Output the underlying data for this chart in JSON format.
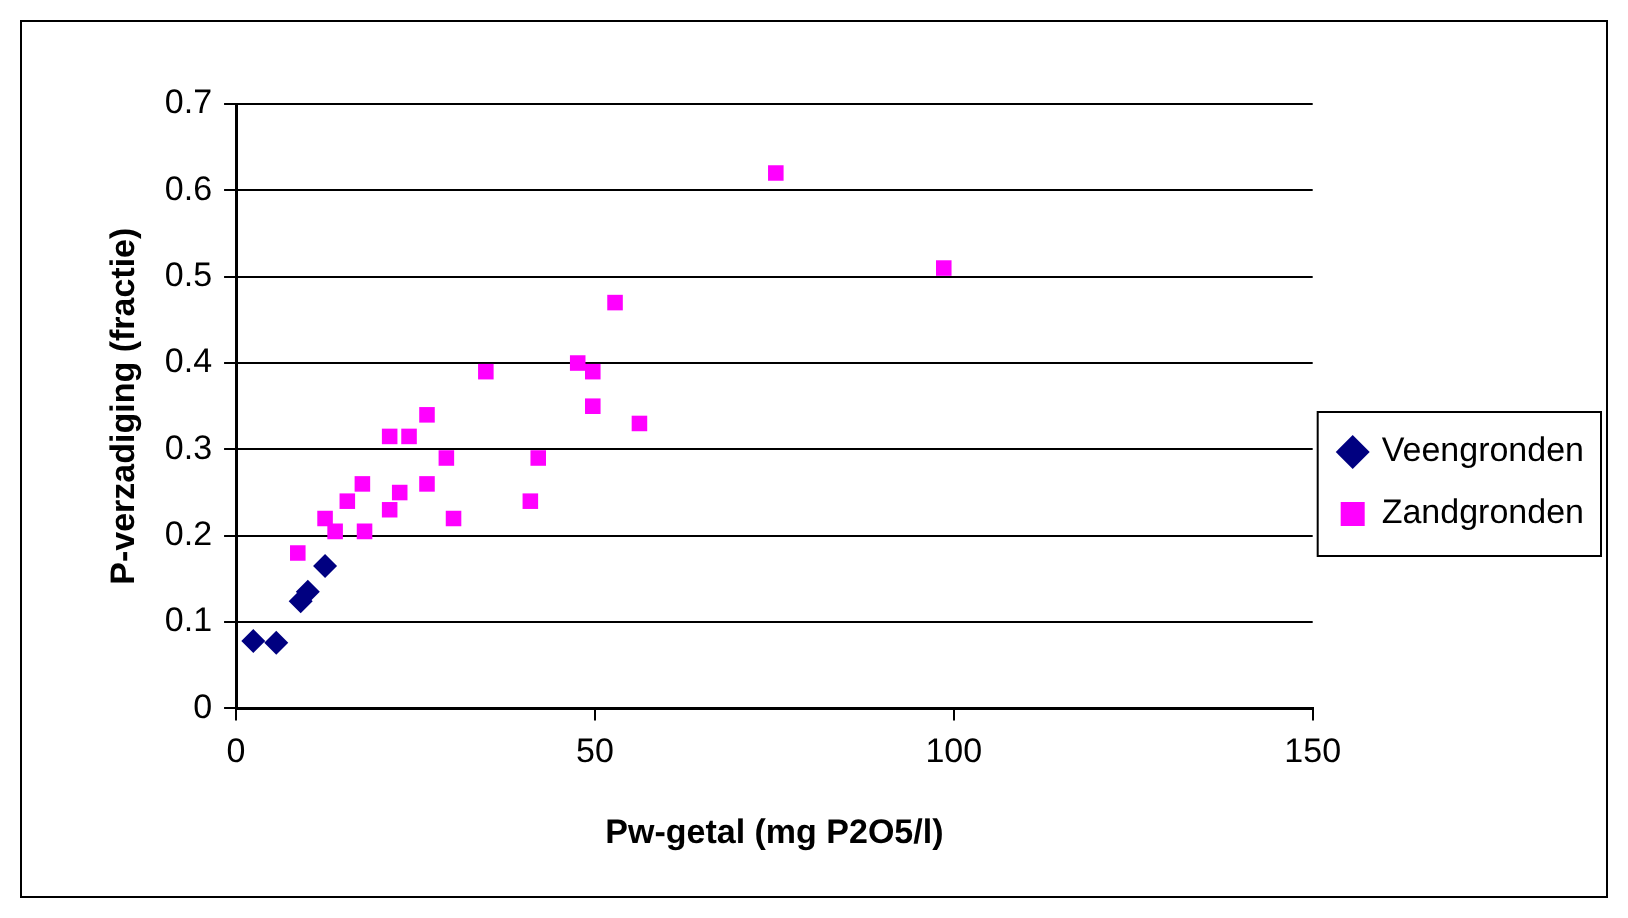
{
  "chart_data": {
    "type": "scatter",
    "xlabel": "Pw-getal (mg P2O5/l)",
    "ylabel": "P-verzadiging (fractie)",
    "xlim": [
      0,
      150
    ],
    "xticks": [
      0,
      50,
      100,
      150
    ],
    "ylim": [
      0,
      0.7
    ],
    "yticks": [
      0,
      0.1,
      0.2,
      0.3,
      0.4,
      0.5,
      0.6,
      0.7
    ],
    "grid": "y",
    "legend": "right",
    "series": [
      {
        "name": "Veengronden",
        "color": "#000080",
        "marker": "diamond",
        "x": [
          2.4,
          5.6,
          9.0,
          10.0,
          12.4
        ],
        "values": [
          0.078,
          0.076,
          0.124,
          0.135,
          0.165
        ]
      },
      {
        "name": "Zandgronden",
        "color": "#ff00ff",
        "marker": "square",
        "x": [
          8.6,
          12.4,
          13.8,
          15.5,
          17.6,
          17.9,
          21.4,
          22.8,
          21.4,
          24.1,
          26.6,
          26.6,
          29.3,
          30.3,
          34.8,
          41.0,
          42.1,
          47.6,
          49.7,
          49.7,
          56.2,
          75.2,
          98.6,
          52.8
        ],
        "values": [
          0.18,
          0.22,
          0.205,
          0.24,
          0.26,
          0.205,
          0.23,
          0.25,
          0.315,
          0.315,
          0.34,
          0.26,
          0.29,
          0.22,
          0.39,
          0.24,
          0.29,
          0.4,
          0.39,
          0.35,
          0.33,
          0.62,
          0.51,
          0.47
        ]
      }
    ]
  }
}
